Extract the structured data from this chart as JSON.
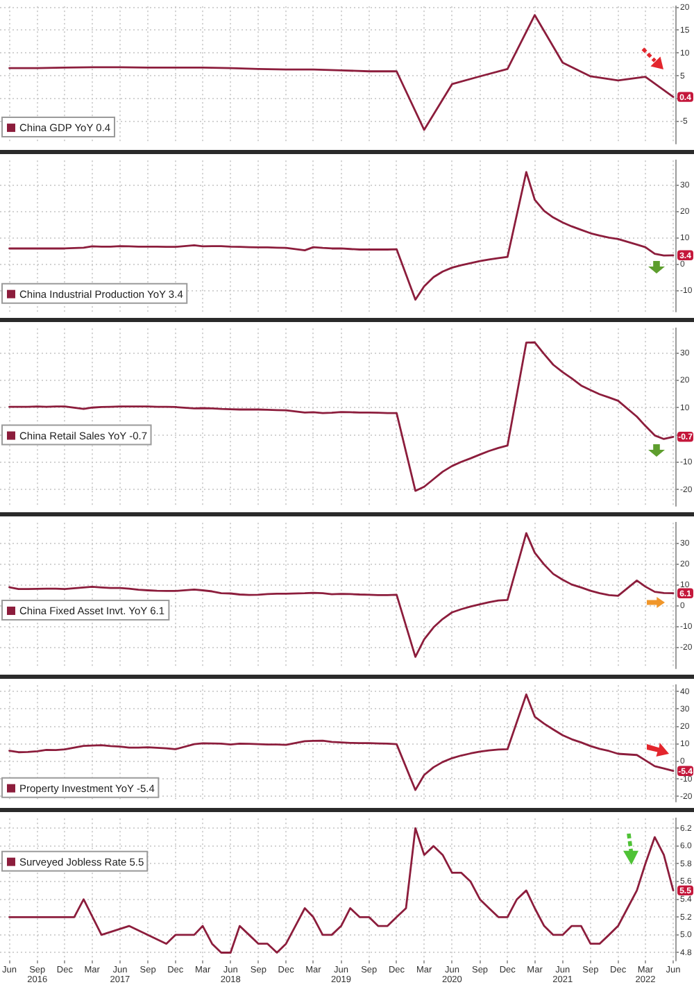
{
  "chart_data": [
    {
      "type": "line",
      "x": [
        "2016-06",
        "2016-09",
        "2016-12",
        "2017-03",
        "2017-06",
        "2017-09",
        "2017-12",
        "2018-03",
        "2018-06",
        "2018-09",
        "2018-12",
        "2019-03",
        "2019-06",
        "2019-09",
        "2019-12",
        "2020-03",
        "2020-06",
        "2020-09",
        "2020-12",
        "2021-03",
        "2021-06",
        "2021-09",
        "2021-12",
        "2022-03",
        "2022-06"
      ],
      "series": [
        {
          "name": "China GDP YoY 0.4",
          "color": "#8c1d3c",
          "values": [
            6.7,
            6.7,
            6.8,
            6.9,
            6.9,
            6.8,
            6.8,
            6.8,
            6.7,
            6.5,
            6.4,
            6.4,
            6.2,
            6.0,
            6.0,
            -6.8,
            3.2,
            4.9,
            6.5,
            18.3,
            7.9,
            4.9,
            4.0,
            4.8,
            0.4
          ],
          "value_labels": [
            null,
            null,
            null,
            null,
            null,
            null,
            null,
            null,
            null,
            null,
            null,
            null,
            null,
            null,
            null,
            null,
            null,
            null,
            null,
            null,
            null,
            null,
            null,
            null,
            "0.4"
          ]
        }
      ],
      "xlim": [
        "2016-05-01",
        "2022-06-10"
      ],
      "xticks": [
        "2016-06",
        "2016-09",
        "2016-12",
        "2017-03",
        "2017-06",
        "2017-09",
        "2017-12",
        "2018-03",
        "2018-06",
        "2018-09",
        "2018-12",
        "2019-03",
        "2019-06",
        "2019-09",
        "2019-12",
        "2020-03",
        "2020-06",
        "2020-09",
        "2020-12",
        "2021-03",
        "2021-06",
        "2021-09",
        "2021-12",
        "2022-03",
        "2022-06"
      ],
      "ylim": [
        -9.8,
        20.2
      ],
      "yticks": [
        20,
        15,
        10,
        5,
        {
          "value": 0,
          "label": null
        },
        -5
      ],
      "grid": true,
      "legend": "bottom left",
      "tick_labels": "y"
    },
    {
      "type": "line",
      "x": [
        "2016-06",
        "2016-07",
        "2016-08",
        "2016-09",
        "2016-10",
        "2016-11",
        "2016-12",
        "2017-02",
        "2017-03",
        "2017-04",
        "2017-05",
        "2017-06",
        "2017-07",
        "2017-08",
        "2017-09",
        "2017-10",
        "2017-11",
        "2017-12",
        "2018-02",
        "2018-03",
        "2018-04",
        "2018-05",
        "2018-06",
        "2018-07",
        "2018-08",
        "2018-09",
        "2018-10",
        "2018-11",
        "2018-12",
        "2019-02",
        "2019-03",
        "2019-04",
        "2019-05",
        "2019-06",
        "2019-07",
        "2019-08",
        "2019-09",
        "2019-10",
        "2019-11",
        "2019-12",
        "2020-02",
        "2020-03",
        "2020-04",
        "2020-05",
        "2020-06",
        "2020-07",
        "2020-08",
        "2020-09",
        "2020-10",
        "2020-11",
        "2020-12",
        "2021-02",
        "2021-03",
        "2021-04",
        "2021-05",
        "2021-06",
        "2021-07",
        "2021-08",
        "2021-09",
        "2021-10",
        "2021-11",
        "2021-12",
        "2022-02",
        "2022-03",
        "2022-04",
        "2022-05",
        "2022-06"
      ],
      "series": [
        {
          "name": "China Industrial Production YoY 3.4",
          "color": "#8c1d3c",
          "values": [
            6.0,
            6.0,
            6.0,
            6.0,
            6.0,
            6.0,
            6.0,
            6.3,
            6.8,
            6.7,
            6.7,
            6.9,
            6.8,
            6.7,
            6.7,
            6.7,
            6.6,
            6.6,
            7.2,
            6.8,
            6.9,
            6.9,
            6.7,
            6.6,
            6.5,
            6.4,
            6.4,
            6.3,
            6.2,
            5.3,
            6.5,
            6.2,
            6.0,
            6.0,
            5.8,
            5.6,
            5.6,
            5.6,
            5.6,
            5.7,
            -13.5,
            -8.4,
            -4.9,
            -2.8,
            -1.3,
            -0.4,
            0.4,
            1.2,
            1.8,
            2.3,
            2.8,
            35.1,
            24.5,
            20.3,
            17.8,
            15.9,
            14.4,
            13.1,
            11.8,
            10.9,
            10.1,
            9.6,
            7.5,
            6.5,
            4.0,
            3.3,
            3.4
          ],
          "value_labels": [
            null,
            null,
            null,
            null,
            null,
            null,
            null,
            null,
            null,
            null,
            null,
            null,
            null,
            null,
            null,
            null,
            null,
            null,
            null,
            null,
            null,
            null,
            null,
            null,
            null,
            null,
            null,
            null,
            null,
            null,
            null,
            null,
            null,
            null,
            null,
            null,
            null,
            null,
            null,
            null,
            null,
            null,
            null,
            null,
            null,
            null,
            null,
            null,
            null,
            null,
            null,
            null,
            null,
            null,
            null,
            null,
            null,
            null,
            null,
            null,
            null,
            null,
            null,
            null,
            null,
            null,
            "3.4"
          ]
        }
      ],
      "xlim": [
        "2016-05-01",
        "2022-06-10"
      ],
      "xticks": [
        "2016-06",
        "2016-09",
        "2016-12",
        "2017-03",
        "2017-06",
        "2017-09",
        "2017-12",
        "2018-03",
        "2018-06",
        "2018-09",
        "2018-12",
        "2019-03",
        "2019-06",
        "2019-09",
        "2019-12",
        "2020-03",
        "2020-06",
        "2020-09",
        "2020-12",
        "2021-03",
        "2021-06",
        "2021-09",
        "2021-12",
        "2022-03",
        "2022-06"
      ],
      "ylim": [
        -18,
        39.5
      ],
      "yticks": [
        30,
        20,
        10,
        0,
        -10
      ],
      "grid": true,
      "legend": "bottom left",
      "tick_labels": "y"
    },
    {
      "type": "line",
      "x": [
        "2016-06",
        "2016-07",
        "2016-08",
        "2016-09",
        "2016-10",
        "2016-11",
        "2016-12",
        "2017-02",
        "2017-03",
        "2017-04",
        "2017-05",
        "2017-06",
        "2017-07",
        "2017-08",
        "2017-09",
        "2017-10",
        "2017-11",
        "2017-12",
        "2018-02",
        "2018-03",
        "2018-04",
        "2018-05",
        "2018-06",
        "2018-07",
        "2018-08",
        "2018-09",
        "2018-10",
        "2018-11",
        "2018-12",
        "2019-02",
        "2019-03",
        "2019-04",
        "2019-05",
        "2019-06",
        "2019-07",
        "2019-08",
        "2019-09",
        "2019-10",
        "2019-11",
        "2019-12",
        "2020-02",
        "2020-03",
        "2020-04",
        "2020-05",
        "2020-06",
        "2020-07",
        "2020-08",
        "2020-09",
        "2020-10",
        "2020-11",
        "2020-12",
        "2021-02",
        "2021-03",
        "2021-04",
        "2021-05",
        "2021-06",
        "2021-07",
        "2021-08",
        "2021-09",
        "2021-10",
        "2021-11",
        "2021-12",
        "2022-02",
        "2022-03",
        "2022-04",
        "2022-05",
        "2022-06"
      ],
      "series": [
        {
          "name": "China Retail Sales YoY -0.7",
          "color": "#8c1d3c",
          "values": [
            10.3,
            10.3,
            10.3,
            10.4,
            10.3,
            10.4,
            10.4,
            9.5,
            10.0,
            10.2,
            10.3,
            10.4,
            10.4,
            10.4,
            10.4,
            10.3,
            10.3,
            10.2,
            9.7,
            9.8,
            9.7,
            9.5,
            9.4,
            9.3,
            9.3,
            9.3,
            9.2,
            9.1,
            9.0,
            8.2,
            8.3,
            8.0,
            8.1,
            8.4,
            8.3,
            8.2,
            8.2,
            8.1,
            8.0,
            8.0,
            -20.5,
            -19.0,
            -16.2,
            -13.5,
            -11.4,
            -9.9,
            -8.6,
            -7.2,
            -5.9,
            -4.8,
            -3.9,
            33.8,
            33.9,
            29.6,
            25.7,
            23.0,
            20.7,
            18.1,
            16.4,
            14.9,
            13.7,
            12.5,
            6.7,
            3.3,
            -0.2,
            -1.5,
            -0.7
          ],
          "value_labels": [
            null,
            null,
            null,
            null,
            null,
            null,
            null,
            null,
            null,
            null,
            null,
            null,
            null,
            null,
            null,
            null,
            null,
            null,
            null,
            null,
            null,
            null,
            null,
            null,
            null,
            null,
            null,
            null,
            null,
            null,
            null,
            null,
            null,
            null,
            null,
            null,
            null,
            null,
            null,
            null,
            null,
            null,
            null,
            null,
            null,
            null,
            null,
            null,
            null,
            null,
            null,
            null,
            null,
            null,
            null,
            null,
            null,
            null,
            null,
            null,
            null,
            null,
            null,
            null,
            null,
            null,
            "-0.7"
          ]
        }
      ],
      "xlim": [
        "2016-05-01",
        "2022-06-10"
      ],
      "xticks": [
        "2016-06",
        "2016-09",
        "2016-12",
        "2017-03",
        "2017-06",
        "2017-09",
        "2017-12",
        "2018-03",
        "2018-06",
        "2018-09",
        "2018-12",
        "2019-03",
        "2019-06",
        "2019-09",
        "2019-12",
        "2020-03",
        "2020-06",
        "2020-09",
        "2020-12",
        "2021-03",
        "2021-06",
        "2021-09",
        "2021-12",
        "2022-03",
        "2022-06"
      ],
      "ylim": [
        -26,
        39
      ],
      "yticks": [
        30,
        20,
        10,
        {
          "value": 0,
          "label": null
        },
        -10,
        -20
      ],
      "grid": true,
      "legend": "left",
      "tick_labels": "y"
    },
    {
      "type": "line",
      "x": [
        "2016-06",
        "2016-07",
        "2016-08",
        "2016-09",
        "2016-10",
        "2016-11",
        "2016-12",
        "2017-02",
        "2017-03",
        "2017-04",
        "2017-05",
        "2017-06",
        "2017-07",
        "2017-08",
        "2017-09",
        "2017-10",
        "2017-11",
        "2017-12",
        "2018-02",
        "2018-03",
        "2018-04",
        "2018-05",
        "2018-06",
        "2018-07",
        "2018-08",
        "2018-09",
        "2018-10",
        "2018-11",
        "2018-12",
        "2019-02",
        "2019-03",
        "2019-04",
        "2019-05",
        "2019-06",
        "2019-07",
        "2019-08",
        "2019-09",
        "2019-10",
        "2019-11",
        "2019-12",
        "2020-02",
        "2020-03",
        "2020-04",
        "2020-05",
        "2020-06",
        "2020-07",
        "2020-08",
        "2020-09",
        "2020-10",
        "2020-11",
        "2020-12",
        "2021-02",
        "2021-03",
        "2021-04",
        "2021-05",
        "2021-06",
        "2021-07",
        "2021-08",
        "2021-09",
        "2021-10",
        "2021-11",
        "2021-12",
        "2022-02",
        "2022-03",
        "2022-04",
        "2022-05",
        "2022-06"
      ],
      "series": [
        {
          "name": "China Fixed Asset Invt. YoY 6.1",
          "color": "#8c1d3c",
          "values": [
            9.0,
            8.1,
            8.1,
            8.2,
            8.3,
            8.3,
            8.1,
            8.9,
            9.2,
            8.9,
            8.6,
            8.6,
            8.3,
            7.8,
            7.5,
            7.3,
            7.2,
            7.2,
            7.9,
            7.5,
            7.0,
            6.1,
            6.0,
            5.5,
            5.3,
            5.4,
            5.7,
            5.9,
            5.9,
            6.1,
            6.3,
            6.1,
            5.6,
            5.8,
            5.7,
            5.5,
            5.4,
            5.2,
            5.2,
            5.4,
            -24.5,
            -16.1,
            -10.3,
            -6.3,
            -3.1,
            -1.6,
            -0.3,
            0.8,
            1.8,
            2.6,
            2.9,
            35.0,
            25.6,
            19.9,
            15.4,
            12.6,
            10.3,
            8.9,
            7.3,
            6.1,
            5.2,
            4.9,
            12.2,
            9.3,
            6.8,
            6.2,
            6.1
          ],
          "value_labels": [
            null,
            null,
            null,
            null,
            null,
            null,
            null,
            null,
            null,
            null,
            null,
            null,
            null,
            null,
            null,
            null,
            null,
            null,
            null,
            null,
            null,
            null,
            null,
            null,
            null,
            null,
            null,
            null,
            null,
            null,
            null,
            null,
            null,
            null,
            null,
            null,
            null,
            null,
            null,
            null,
            null,
            null,
            null,
            null,
            null,
            null,
            null,
            null,
            null,
            null,
            null,
            null,
            null,
            null,
            null,
            null,
            null,
            null,
            null,
            null,
            null,
            null,
            null,
            null,
            null,
            null,
            "6.1"
          ]
        }
      ],
      "xlim": [
        "2016-05-01",
        "2022-06-10"
      ],
      "xticks": [
        "2016-06",
        "2016-09",
        "2016-12",
        "2017-03",
        "2017-06",
        "2017-09",
        "2017-12",
        "2018-03",
        "2018-06",
        "2018-09",
        "2018-12",
        "2019-03",
        "2019-06",
        "2019-09",
        "2019-12",
        "2020-03",
        "2020-06",
        "2020-09",
        "2020-12",
        "2021-03",
        "2021-06",
        "2021-09",
        "2021-12",
        "2022-03",
        "2022-06"
      ],
      "ylim": [
        -30,
        40
      ],
      "yticks": [
        30,
        20,
        10,
        0,
        -10,
        -20
      ],
      "grid": true,
      "legend": "left",
      "tick_labels": "y"
    },
    {
      "type": "line",
      "x": [
        "2016-06",
        "2016-07",
        "2016-08",
        "2016-09",
        "2016-10",
        "2016-11",
        "2016-12",
        "2017-02",
        "2017-03",
        "2017-04",
        "2017-05",
        "2017-06",
        "2017-07",
        "2017-08",
        "2017-09",
        "2017-10",
        "2017-11",
        "2017-12",
        "2018-02",
        "2018-03",
        "2018-04",
        "2018-05",
        "2018-06",
        "2018-07",
        "2018-08",
        "2018-09",
        "2018-10",
        "2018-11",
        "2018-12",
        "2019-02",
        "2019-03",
        "2019-04",
        "2019-05",
        "2019-06",
        "2019-07",
        "2019-08",
        "2019-09",
        "2019-10",
        "2019-11",
        "2019-12",
        "2020-02",
        "2020-03",
        "2020-04",
        "2020-05",
        "2020-06",
        "2020-07",
        "2020-08",
        "2020-09",
        "2020-10",
        "2020-11",
        "2020-12",
        "2021-02",
        "2021-03",
        "2021-04",
        "2021-05",
        "2021-06",
        "2021-07",
        "2021-08",
        "2021-09",
        "2021-10",
        "2021-11",
        "2021-12",
        "2022-02",
        "2022-03",
        "2022-04",
        "2022-05",
        "2022-06"
      ],
      "series": [
        {
          "name": "Property Investment YoY -5.4",
          "color": "#8c1d3c",
          "values": [
            6.1,
            5.3,
            5.4,
            5.8,
            6.6,
            6.5,
            6.9,
            8.9,
            9.1,
            9.3,
            8.8,
            8.5,
            7.9,
            7.9,
            8.1,
            7.8,
            7.5,
            7.0,
            9.9,
            10.4,
            10.3,
            10.2,
            9.7,
            10.2,
            10.1,
            9.9,
            9.7,
            9.7,
            9.5,
            11.6,
            11.8,
            11.9,
            11.2,
            10.9,
            10.6,
            10.5,
            10.5,
            10.3,
            10.2,
            9.9,
            -16.3,
            -7.7,
            -3.3,
            -0.3,
            1.9,
            3.4,
            4.6,
            5.6,
            6.3,
            6.8,
            7.0,
            38.3,
            25.6,
            21.6,
            18.3,
            15.0,
            12.7,
            10.9,
            8.8,
            7.2,
            6.0,
            4.4,
            3.7,
            0.7,
            -2.7,
            -4.0,
            -5.4
          ],
          "value_labels": [
            null,
            null,
            null,
            null,
            null,
            null,
            null,
            null,
            null,
            null,
            null,
            null,
            null,
            null,
            null,
            null,
            null,
            null,
            null,
            null,
            null,
            null,
            null,
            null,
            null,
            null,
            null,
            null,
            null,
            null,
            null,
            null,
            null,
            null,
            null,
            null,
            null,
            null,
            null,
            null,
            null,
            null,
            null,
            null,
            null,
            null,
            null,
            null,
            null,
            null,
            null,
            null,
            null,
            null,
            null,
            null,
            null,
            null,
            null,
            null,
            null,
            null,
            null,
            null,
            null,
            null,
            "-5.4"
          ]
        }
      ],
      "xlim": [
        "2016-05-01",
        "2022-06-10"
      ],
      "xticks": [
        "2016-06",
        "2016-09",
        "2016-12",
        "2017-03",
        "2017-06",
        "2017-09",
        "2017-12",
        "2018-03",
        "2018-06",
        "2018-09",
        "2018-12",
        "2019-03",
        "2019-06",
        "2019-09",
        "2019-12",
        "2020-03",
        "2020-06",
        "2020-09",
        "2020-12",
        "2021-03",
        "2021-06",
        "2021-09",
        "2021-12",
        "2022-03",
        "2022-06"
      ],
      "ylim": [
        -22.9,
        43.6
      ],
      "yticks": [
        40,
        30,
        20,
        10,
        0,
        -10,
        -20
      ],
      "grid": true,
      "legend": "bottom left",
      "tick_labels": "y"
    },
    {
      "type": "line",
      "x": [
        "2016-06",
        "2017-01",
        "2017-02",
        "2017-04",
        "2017-07",
        "2017-11",
        "2017-12",
        "2018-01",
        "2018-02",
        "2018-03",
        "2018-04",
        "2018-05",
        "2018-06",
        "2018-07",
        "2018-08",
        "2018-09",
        "2018-10",
        "2018-11",
        "2018-12",
        "2019-01",
        "2019-02",
        "2019-03",
        "2019-04",
        "2019-05",
        "2019-06",
        "2019-07",
        "2019-08",
        "2019-09",
        "2019-10",
        "2019-11",
        "2019-12",
        "2020-01",
        "2020-02",
        "2020-03",
        "2020-04",
        "2020-05",
        "2020-06",
        "2020-07",
        "2020-08",
        "2020-09",
        "2020-10",
        "2020-11",
        "2020-12",
        "2021-01",
        "2021-02",
        "2021-03",
        "2021-04",
        "2021-05",
        "2021-06",
        "2021-07",
        "2021-08",
        "2021-09",
        "2021-10",
        "2021-11",
        "2021-12",
        "2022-01",
        "2022-02",
        "2022-03",
        "2022-04",
        "2022-05",
        "2022-06"
      ],
      "series": [
        {
          "name": "Surveyed Jobless Rate 5.5",
          "color": "#8c1d3c",
          "values": [
            5.2,
            5.2,
            5.4,
            5.0,
            5.1,
            4.9,
            5.0,
            5.0,
            5.0,
            5.1,
            4.9,
            4.8,
            4.8,
            5.1,
            5.0,
            4.9,
            4.9,
            4.8,
            4.9,
            5.1,
            5.3,
            5.2,
            5.0,
            5.0,
            5.1,
            5.3,
            5.2,
            5.2,
            5.1,
            5.1,
            5.2,
            5.3,
            6.2,
            5.9,
            6.0,
            5.9,
            5.7,
            5.7,
            5.6,
            5.4,
            5.3,
            5.2,
            5.2,
            5.4,
            5.5,
            5.3,
            5.1,
            5.0,
            5.0,
            5.1,
            5.1,
            4.9,
            4.9,
            5.0,
            5.1,
            5.3,
            5.5,
            5.8,
            6.1,
            5.9,
            5.5
          ],
          "value_labels": [
            null,
            null,
            null,
            null,
            null,
            null,
            null,
            null,
            null,
            null,
            null,
            null,
            null,
            null,
            null,
            null,
            null,
            null,
            null,
            null,
            null,
            null,
            null,
            null,
            null,
            null,
            null,
            null,
            null,
            null,
            null,
            null,
            null,
            null,
            null,
            null,
            null,
            null,
            null,
            null,
            null,
            null,
            null,
            null,
            null,
            null,
            null,
            null,
            null,
            null,
            null,
            null,
            null,
            null,
            null,
            null,
            null,
            null,
            null,
            null,
            "5.5"
          ]
        }
      ],
      "xlim": [
        "2016-05-01",
        "2022-06-10"
      ],
      "xticks": [
        {
          "value": "2016-06",
          "label": "Jun"
        },
        {
          "value": "2016-09",
          "label": "Sep\n2016"
        },
        {
          "value": "2016-12",
          "label": "Dec"
        },
        {
          "value": "2017-03",
          "label": "Mar"
        },
        {
          "value": "2017-06",
          "label": "Jun\n2017"
        },
        {
          "value": "2017-09",
          "label": "Sep"
        },
        {
          "value": "2017-12",
          "label": "Dec"
        },
        {
          "value": "2018-03",
          "label": "Mar"
        },
        {
          "value": "2018-06",
          "label": "Jun\n2018"
        },
        {
          "value": "2018-09",
          "label": "Sep"
        },
        {
          "value": "2018-12",
          "label": "Dec"
        },
        {
          "value": "2019-03",
          "label": "Mar"
        },
        {
          "value": "2019-06",
          "label": "Jun\n2019"
        },
        {
          "value": "2019-09",
          "label": "Sep"
        },
        {
          "value": "2019-12",
          "label": "Dec"
        },
        {
          "value": "2020-03",
          "label": "Mar"
        },
        {
          "value": "2020-06",
          "label": "Jun\n2020"
        },
        {
          "value": "2020-09",
          "label": "Sep"
        },
        {
          "value": "2020-12",
          "label": "Dec"
        },
        {
          "value": "2021-03",
          "label": "Mar"
        },
        {
          "value": "2021-06",
          "label": "Jun\n2021"
        },
        {
          "value": "2021-09",
          "label": "Sep"
        },
        {
          "value": "2021-12",
          "label": "Dec"
        },
        {
          "value": "2022-03",
          "label": "Mar\n2022"
        },
        {
          "value": "2022-06",
          "label": "Jun"
        }
      ],
      "ylim": [
        4.71,
        6.31
      ],
      "yticks": [
        6.2,
        {
          "value": 6,
          "label": "6.0"
        },
        5.8,
        5.6,
        5.4,
        5.2,
        {
          "value": 5,
          "label": "5.0"
        },
        4.8
      ],
      "grid": true,
      "legend": "top left"
    }
  ]
}
